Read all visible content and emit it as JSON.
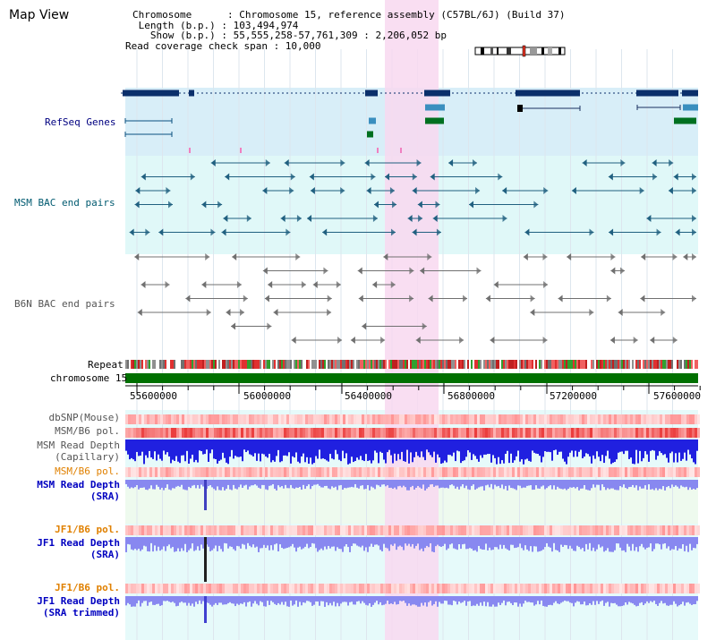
{
  "page": {
    "title": "Map View"
  },
  "info": {
    "chromosome": "Chromosome      : Chromosome 15, reference assembly (C57BL/6J) (Build 37)",
    "length": " Length (b.p.) : 103,494,974",
    "show": "   Show (b.p.) : 55,555,258-57,761,309 : 2,206,052 bp",
    "coverage": "Read coverage check span : 10,000"
  },
  "tracks": {
    "refseq": "RefSeq Genes",
    "msm_bac": "MSM BAC end pairs",
    "b6n_bac": "B6N BAC end pairs",
    "repeat": "Repeat",
    "chromosome": "chromosome 15",
    "dbsnp": "dbSNP(Mouse)",
    "msm_pol": "MSM/B6 pol.",
    "msm_depth_cap": "MSM Read Depth\n(Capillary)",
    "msm_pol2": "MSM/B6 pol.",
    "msm_depth_sra": "MSM Read Depth\n(SRA)",
    "jf1_pol": "JF1/B6 pol.",
    "jf1_depth_sra": "JF1 Read Depth\n(SRA)",
    "jf1_pol2": "JF1/B6 pol.",
    "jf1_depth_trim": "JF1 Read Depth\n(SRA trimmed)"
  },
  "axis": {
    "ticks": [
      "55600000",
      "56000000",
      "56400000",
      "56800000",
      "57200000",
      "57600000"
    ]
  },
  "colors": {
    "refseq_label": "#000080",
    "msm_label": "#005a70",
    "b6n_label": "#555555",
    "pol_label": "#e08000",
    "depth_label": "#0000c0",
    "highlight": "#f8d8f0",
    "refseq_bg": "#d8eef8",
    "msm_bg": "#e0f8f8",
    "chromosome_bar": "#007000",
    "depth_blue": "#2020e0",
    "depth_lightblue": "#8888f0"
  }
}
